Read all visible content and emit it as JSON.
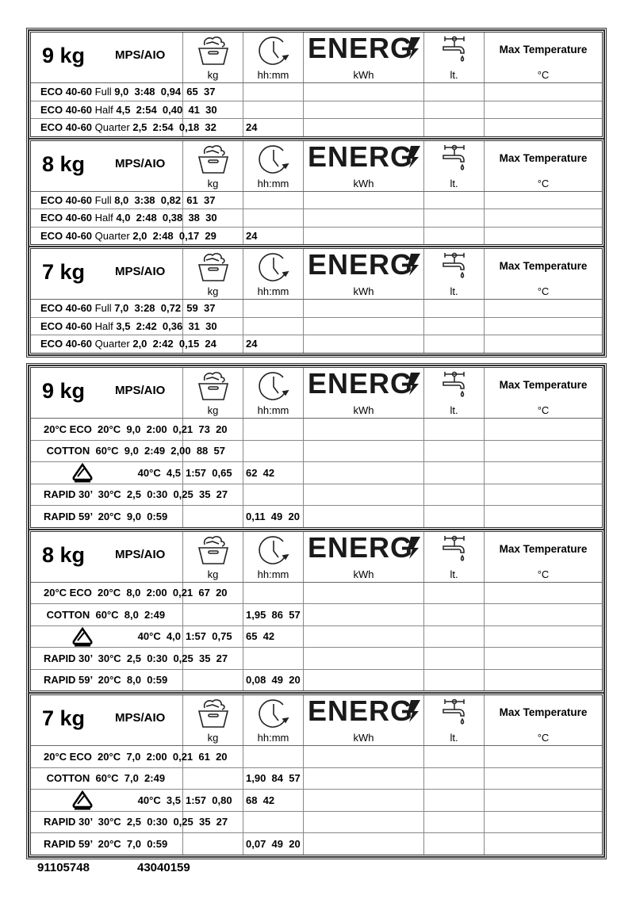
{
  "header": {
    "model": "MPS/AIO",
    "units": [
      "kg",
      "hh:mm",
      "kWh",
      "lt."
    ],
    "energy_logo": "ENERG",
    "max_temp_label": "Max Temperature",
    "max_temp_unit": "°C",
    "icons": [
      "laundry-basket-icon",
      "clock-icon",
      "energy-logo",
      "water-tap-icon"
    ]
  },
  "groups": [
    {
      "blocks": [
        {
          "capacity": "9 kg",
          "rows": [
            {
              "c0": [
                {
                  "t": "ECO 40-60 ",
                  "b": true
                },
                {
                  "t": "Full ",
                  "b": false
                },
                {
                  "t": "9,0  3:48  0,94  65  37",
                  "b": true
                }
              ]
            },
            {
              "c0": [
                {
                  "t": "ECO 40-60 ",
                  "b": true
                },
                {
                  "t": "Half ",
                  "b": false
                },
                {
                  "t": "4,5  2:54  0,40  41  30",
                  "b": true
                }
              ]
            },
            {
              "c0": [
                {
                  "t": "ECO 40-60 ",
                  "b": true
                },
                {
                  "t": "Quarter ",
                  "b": false
                },
                {
                  "t": "2,5  2:54  0,18  32",
                  "b": true
                }
              ],
              "c2": "24"
            }
          ]
        },
        {
          "capacity": "8 kg",
          "rows": [
            {
              "c0": [
                {
                  "t": "ECO 40-60 ",
                  "b": true
                },
                {
                  "t": "Full ",
                  "b": false
                },
                {
                  "t": "8,0  3:38  0,82  61  37",
                  "b": true
                }
              ]
            },
            {
              "c0": [
                {
                  "t": "ECO 40-60 ",
                  "b": true
                },
                {
                  "t": "Half ",
                  "b": false
                },
                {
                  "t": "4,0  2:48  0,38  38  30",
                  "b": true
                }
              ]
            },
            {
              "c0": [
                {
                  "t": "ECO 40-60 ",
                  "b": true
                },
                {
                  "t": "Quarter ",
                  "b": false
                },
                {
                  "t": "2,0  2:48  0,17  29",
                  "b": true
                }
              ],
              "c2": "24"
            }
          ]
        },
        {
          "capacity": "7 kg",
          "rows": [
            {
              "c0": [
                {
                  "t": "ECO 40-60 ",
                  "b": true
                },
                {
                  "t": "Full ",
                  "b": false
                },
                {
                  "t": "7,0  3:28  0,72  59  37",
                  "b": true
                }
              ]
            },
            {
              "c0": [
                {
                  "t": "ECO 40-60 ",
                  "b": true
                },
                {
                  "t": "Half ",
                  "b": false
                },
                {
                  "t": "3,5  2:42  0,36  31  30",
                  "b": true
                }
              ]
            },
            {
              "c0": [
                {
                  "t": "ECO 40-60 ",
                  "b": true
                },
                {
                  "t": "Quarter ",
                  "b": false
                },
                {
                  "t": "2,0  2:42  0,15  24",
                  "b": true
                }
              ],
              "c2": "24"
            }
          ]
        }
      ]
    },
    {
      "blocks": [
        {
          "capacity": "9 kg",
          "rows": [
            {
              "c0": [
                {
                  "t": "20°C ECO  20°C  9,0  2:00  0,21  73  20",
                  "b": true
                }
              ]
            },
            {
              "c0": [
                {
                  "t": " COTTON  60°C  9,0  2:49  2,00  88  57",
                  "b": true
                }
              ]
            },
            {
              "icon": "triangle-icon",
              "c0": [
                {
                  "t": "40°C  4,5",
                  "b": true
                }
              ],
              "c1": "1:57  0,65",
              "c2": "62  42"
            },
            {
              "c0": [
                {
                  "t": "RAPID 30’  30°C  2,5  0:30  0,25  35  27",
                  "b": true
                }
              ]
            },
            {
              "c0": [
                {
                  "t": "RAPID 59’  20°C  9,0  0:59",
                  "b": true
                }
              ],
              "c2": "0,11  49  20"
            }
          ]
        },
        {
          "capacity": "8 kg",
          "rows": [
            {
              "c0": [
                {
                  "t": "20°C ECO  20°C  8,0  2:00  0,21  67  20",
                  "b": true
                }
              ]
            },
            {
              "c0": [
                {
                  "t": " COTTON  60°C  8,0  2:49",
                  "b": true
                }
              ],
              "c2": "1,95  86  57"
            },
            {
              "icon": "triangle-icon",
              "c0": [
                {
                  "t": "40°C  4,0",
                  "b": true
                }
              ],
              "c1": "1:57  0,75",
              "c2": "65  42"
            },
            {
              "c0": [
                {
                  "t": "RAPID 30’  30°C  2,5  0:30  0,25  35  27",
                  "b": true
                }
              ]
            },
            {
              "c0": [
                {
                  "t": "RAPID 59’  20°C  8,0  0:59",
                  "b": true
                }
              ],
              "c2": "0,08  49  20"
            }
          ]
        },
        {
          "capacity": "7 kg",
          "rows": [
            {
              "c0": [
                {
                  "t": "20°C ECO  20°C  7,0  2:00  0,21  61  20",
                  "b": true
                }
              ]
            },
            {
              "c0": [
                {
                  "t": " COTTON  60°C  7,0  2:49",
                  "b": true
                }
              ],
              "c2": "1,90  84  57"
            },
            {
              "icon": "triangle-icon",
              "c0": [
                {
                  "t": "40°C  3,5",
                  "b": true
                }
              ],
              "c1": "1:57  0,80",
              "c2": "68  42"
            },
            {
              "c0": [
                {
                  "t": "RAPID 30’  30°C  2,5  0:30  0,25  35  27",
                  "b": true
                }
              ]
            },
            {
              "c0": [
                {
                  "t": "RAPID 59’  20°C  7,0  0:59",
                  "b": true
                }
              ],
              "c2": "0,07  49  20"
            }
          ]
        }
      ]
    }
  ],
  "footer": {
    "code1": "91105748",
    "code2": "43040159"
  }
}
